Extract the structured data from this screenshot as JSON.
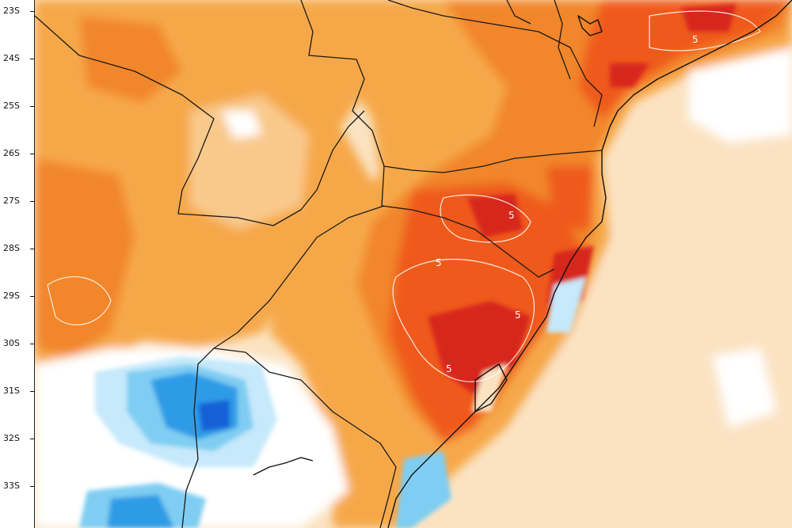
{
  "map": {
    "latitude_labels": [
      "23S",
      "24S",
      "25S",
      "26S",
      "27S",
      "28S",
      "29S",
      "30S",
      "31S",
      "32S",
      "33S"
    ],
    "contour_labels": [
      "5",
      "5",
      "5",
      "5",
      "5"
    ],
    "colors": {
      "deep_red": "#d7261e",
      "red": "#ef5a1e",
      "dark_orange": "#f2862a",
      "orange": "#f6a84a",
      "light_orange": "#f9c98c",
      "pale_orange": "#fbe3c2",
      "white": "#ffffff",
      "pale_blue": "#c6e9fb",
      "light_blue": "#7fcdf2",
      "blue": "#2f9be6",
      "dark_blue": "#1360d6",
      "border_line": "#1a1a1a"
    }
  }
}
